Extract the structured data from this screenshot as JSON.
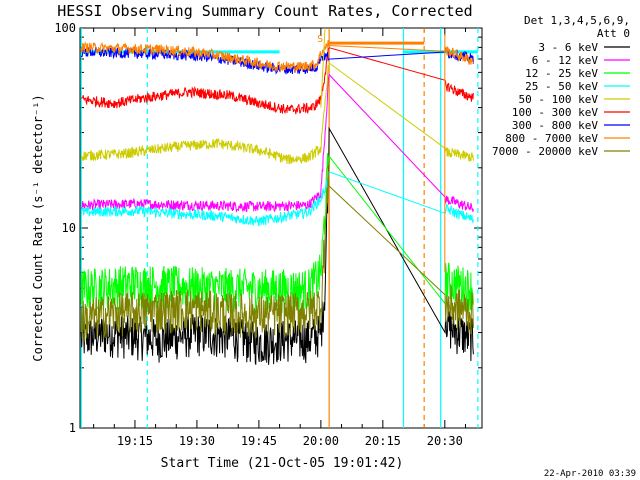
{
  "chart_data": {
    "type": "line",
    "title": "HESSI Observing Summary Count Rates, Corrected",
    "xlabel": "Start Time (21-Oct-05 19:01:42)",
    "ylabel": "Corrected Count Rate (s⁻¹ detector⁻¹)",
    "y_scale": "log",
    "ylim": [
      1,
      100
    ],
    "xlim": [
      "19:01:42",
      "20:39:00"
    ],
    "x_ticks": [
      "19:15",
      "19:30",
      "19:45",
      "20:00",
      "20:15",
      "20:30"
    ],
    "y_tick_labels": [
      "1",
      "10",
      "100"
    ],
    "legend_header": [
      "Det 1,3,4,5,6,9,",
      "Att 0"
    ],
    "legend_position": "right",
    "footer_date": "22-Apr-2010 03:39",
    "annotation_s": "S",
    "series": [
      {
        "name": "3 - 6 keV",
        "color": "#000000",
        "values": [
          [
            "19:02",
            2.8
          ],
          [
            "19:08",
            3.0
          ],
          [
            "19:15",
            2.9
          ],
          [
            "19:22",
            2.8
          ],
          [
            "19:30",
            3.0
          ],
          [
            "19:38",
            2.9
          ],
          [
            "19:45",
            2.7
          ],
          [
            "19:52",
            2.8
          ],
          [
            "19:57",
            2.8
          ],
          [
            "20:00",
            3.0
          ],
          [
            "20:01",
            5.0
          ],
          [
            "20:02",
            30
          ],
          [
            "20:30",
            4.0
          ],
          [
            "20:31",
            3.2
          ],
          [
            "20:34",
            3.0
          ],
          [
            "20:37",
            2.8
          ]
        ]
      },
      {
        "name": "6 - 12 keV",
        "color": "#ff00ff",
        "values": [
          [
            "19:02",
            13.0
          ],
          [
            "19:15",
            13.2
          ],
          [
            "19:30",
            13.0
          ],
          [
            "19:45",
            12.8
          ],
          [
            "19:57",
            13.0
          ],
          [
            "20:00",
            15.0
          ],
          [
            "20:02",
            60
          ],
          [
            "20:30",
            14.0
          ],
          [
            "20:37",
            12.5
          ]
        ]
      },
      {
        "name": "12 - 25 keV",
        "color": "#00ff00",
        "values": [
          [
            "19:02",
            5.0
          ],
          [
            "19:15",
            5.3
          ],
          [
            "19:30",
            5.1
          ],
          [
            "19:45",
            5.0
          ],
          [
            "19:57",
            5.0
          ],
          [
            "20:00",
            6.0
          ],
          [
            "20:02",
            25
          ],
          [
            "20:30",
            5.5
          ],
          [
            "20:37",
            5.0
          ]
        ]
      },
      {
        "name": "25 - 50 keV",
        "color": "#00ffff",
        "values": [
          [
            "19:02",
            12.0
          ],
          [
            "19:15",
            12.2
          ],
          [
            "19:25",
            11.8
          ],
          [
            "19:35",
            11.5
          ],
          [
            "19:45",
            10.8
          ],
          [
            "19:52",
            11.5
          ],
          [
            "19:57",
            12.0
          ],
          [
            "20:00",
            14.0
          ],
          [
            "20:02",
            18
          ],
          [
            "20:30",
            12.5
          ],
          [
            "20:37",
            11.0
          ]
        ]
      },
      {
        "name": "50 - 100 keV",
        "color": "#cccc00",
        "values": [
          [
            "19:02",
            23.0
          ],
          [
            "19:12",
            23.5
          ],
          [
            "19:25",
            25.5
          ],
          [
            "19:35",
            26.5
          ],
          [
            "19:45",
            24.5
          ],
          [
            "19:52",
            22.0
          ],
          [
            "19:57",
            22.5
          ],
          [
            "20:00",
            25.0
          ],
          [
            "20:02",
            70
          ],
          [
            "20:30",
            24.0
          ],
          [
            "20:37",
            22.5
          ]
        ]
      },
      {
        "name": "100 - 300 keV",
        "color": "#ff0000",
        "values": [
          [
            "19:02",
            44.0
          ],
          [
            "19:10",
            42.0
          ],
          [
            "19:18",
            45.0
          ],
          [
            "19:28",
            48.0
          ],
          [
            "19:38",
            46.0
          ],
          [
            "19:45",
            42.0
          ],
          [
            "19:52",
            39.0
          ],
          [
            "19:58",
            40.0
          ],
          [
            "20:00",
            44.0
          ],
          [
            "20:02",
            80
          ],
          [
            "20:30",
            52.0
          ],
          [
            "20:34",
            47.0
          ],
          [
            "20:37",
            45.0
          ]
        ]
      },
      {
        "name": "300 - 800 keV",
        "color": "#0000ff",
        "values": [
          [
            "19:02",
            76.0
          ],
          [
            "19:12",
            75.0
          ],
          [
            "19:22",
            74.0
          ],
          [
            "19:32",
            72.0
          ],
          [
            "19:40",
            68.0
          ],
          [
            "19:48",
            63.0
          ],
          [
            "19:55",
            62.0
          ],
          [
            "19:59",
            64.0
          ],
          [
            "20:00",
            72.0
          ],
          [
            "20:30",
            76.0
          ],
          [
            "20:37",
            70.0
          ]
        ]
      },
      {
        "name": "800 - 7000 keV",
        "color": "#ff8000",
        "values": [
          [
            "19:02",
            80.0
          ],
          [
            "19:12",
            79.0
          ],
          [
            "19:22",
            78.0
          ],
          [
            "19:32",
            75.0
          ],
          [
            "19:40",
            70.0
          ],
          [
            "19:48",
            65.0
          ],
          [
            "19:55",
            64.0
          ],
          [
            "19:59",
            66.0
          ],
          [
            "20:00",
            75.0
          ],
          [
            "20:02",
            84.0
          ],
          [
            "20:25",
            84.0
          ],
          [
            "20:30",
            78.0
          ],
          [
            "20:37",
            68.0
          ]
        ]
      },
      {
        "name": "7000 - 20000 keV",
        "color": "#808000",
        "values": [
          [
            "19:02",
            3.5
          ],
          [
            "19:10",
            3.8
          ],
          [
            "19:18",
            3.9
          ],
          [
            "19:28",
            4.0
          ],
          [
            "19:38",
            3.8
          ],
          [
            "19:45",
            3.7
          ],
          [
            "19:52",
            3.8
          ],
          [
            "19:57",
            3.9
          ],
          [
            "20:00",
            4.2
          ],
          [
            "20:02",
            20
          ],
          [
            "20:30",
            4.2
          ],
          [
            "20:37",
            3.8
          ]
        ]
      }
    ],
    "vertical_markers": [
      {
        "time": "19:02",
        "color": "#00ffff",
        "style": "solid"
      },
      {
        "time": "19:18",
        "color": "#00ffff",
        "style": "dashed"
      },
      {
        "time": "20:02",
        "color": "#ff8000",
        "style": "solid"
      },
      {
        "time": "20:20",
        "color": "#00ffff",
        "style": "solid"
      },
      {
        "time": "20:25",
        "color": "#ff8000",
        "style": "dashed"
      },
      {
        "time": "20:29",
        "color": "#00ffff",
        "style": "solid"
      },
      {
        "time": "20:38",
        "color": "#00ffff",
        "style": "dashed"
      }
    ],
    "horizontal_markers": [
      {
        "from": "19:02",
        "to": "19:50",
        "value": 76,
        "color": "#00ffff"
      },
      {
        "from": "20:02",
        "to": "20:25",
        "value": 84,
        "color": "#ff8000"
      },
      {
        "from": "20:20",
        "to": "20:38",
        "value": 76,
        "color": "#00ffff"
      }
    ]
  }
}
